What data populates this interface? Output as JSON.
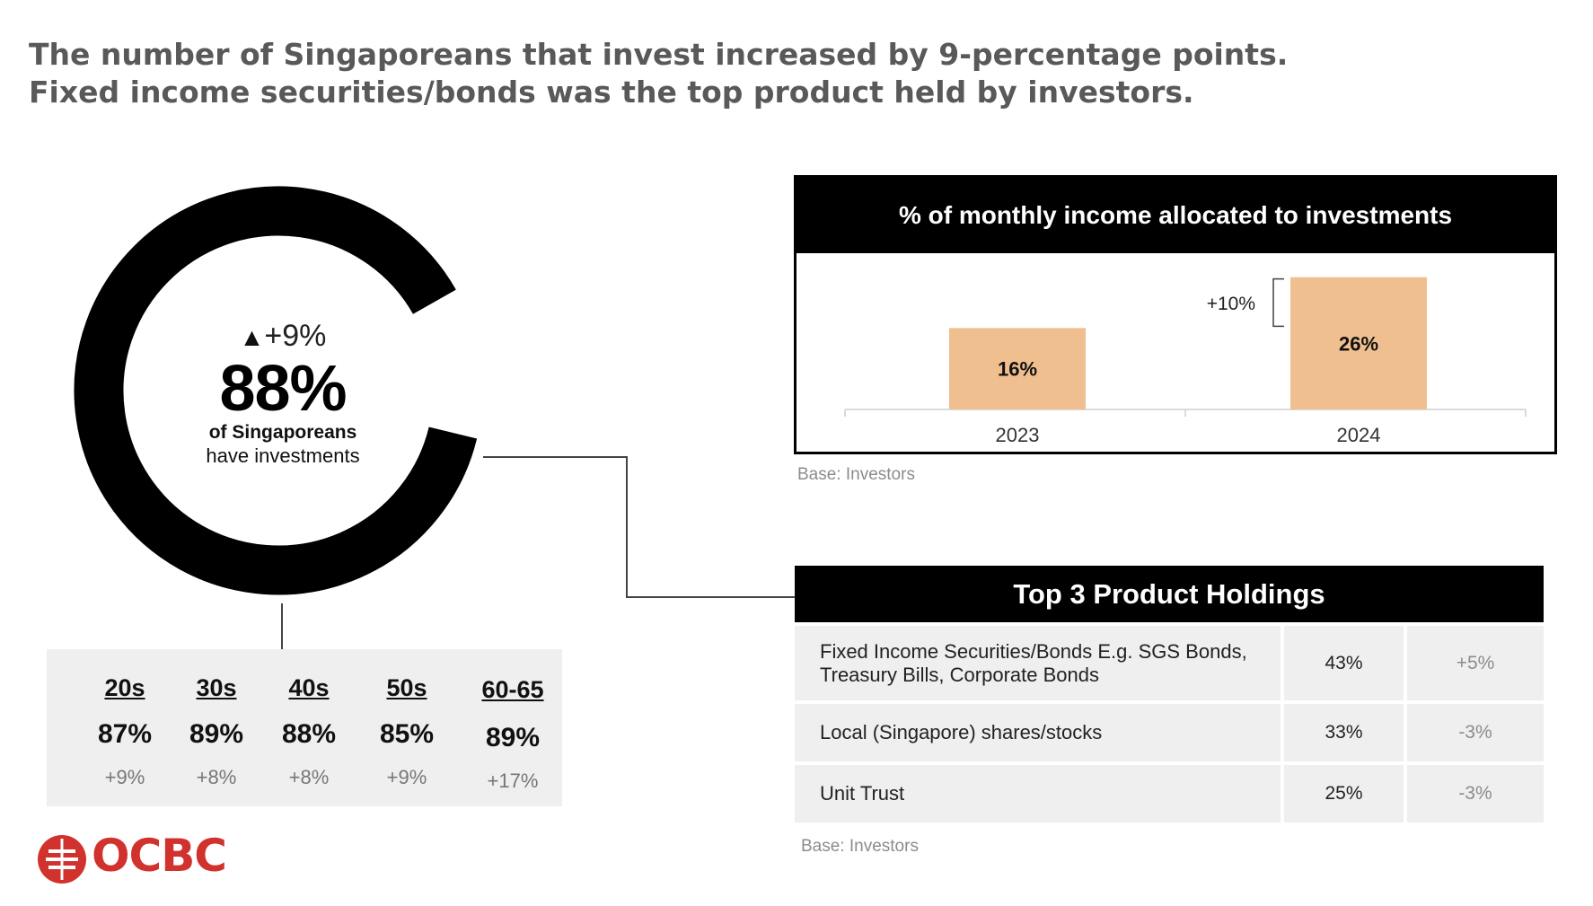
{
  "headline": {
    "line1": "The number of Singaporeans that invest increased by 9-percentage points.",
    "line2": "Fixed income securities/bonds was the top product held by investors."
  },
  "donut": {
    "value": 88,
    "value_label": "88%",
    "delta_symbol": "▲",
    "delta": "+9%",
    "line1": "of Singaporeans",
    "line2": "have investments",
    "color": "#000000"
  },
  "age_groups": [
    {
      "label": "20s",
      "value": "87%",
      "delta": "+9%"
    },
    {
      "label": "30s",
      "value": "89%",
      "delta": "+8%"
    },
    {
      "label": "40s",
      "value": "88%",
      "delta": "+8%"
    },
    {
      "label": "50s",
      "value": "85%",
      "delta": "+9%"
    },
    {
      "label": "60-65",
      "value": "89%",
      "delta": "+17%"
    }
  ],
  "chart_data": {
    "type": "bar",
    "title": "% of monthly income allocated to investments",
    "categories": [
      "2023",
      "2024"
    ],
    "values": [
      16,
      26
    ],
    "value_labels": [
      "16%",
      "26%"
    ],
    "annotation": "+10%",
    "bar_color": "#f0bf8f",
    "ylim": [
      0,
      30
    ],
    "base_note": "Base: Investors"
  },
  "holdings": {
    "title": "Top 3 Product Holdings",
    "rows": [
      {
        "name": "Fixed Income Securities/Bonds E.g. SGS Bonds, Treasury Bills, Corporate Bonds",
        "value": "43%",
        "change": "+5%"
      },
      {
        "name": "Local (Singapore) shares/stocks",
        "value": "33%",
        "change": "-3%"
      },
      {
        "name": "Unit Trust",
        "value": "25%",
        "change": "-3%"
      }
    ],
    "base_note": "Base: Investors"
  },
  "logo": {
    "text": "OCBC",
    "color": "#d2322d",
    "icon": "ocbc-sail-icon"
  }
}
